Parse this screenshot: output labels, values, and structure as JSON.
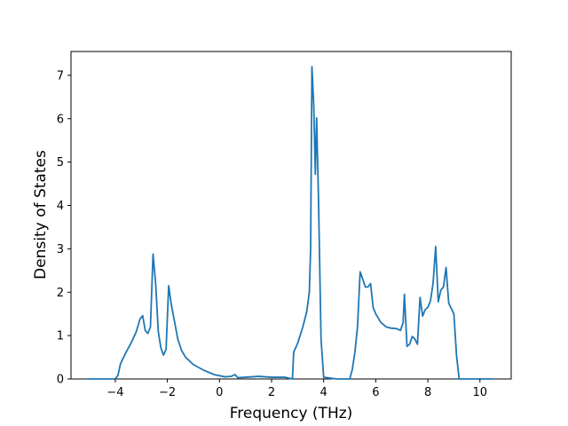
{
  "chart_data": {
    "type": "line",
    "title": "",
    "xlabel": "Frequency (THz)",
    "ylabel": "Density of States",
    "xlim": [
      -5.7,
      11.2
    ],
    "ylim": [
      0,
      7.55
    ],
    "xticks": [
      -4,
      -2,
      0,
      2,
      4,
      6,
      8,
      10
    ],
    "xtick_labels": [
      "−4",
      "−2",
      "0",
      "2",
      "4",
      "6",
      "8",
      "10"
    ],
    "yticks": [
      0,
      1,
      2,
      3,
      4,
      5,
      6,
      7
    ],
    "ytick_labels": [
      "0",
      "1",
      "2",
      "3",
      "4",
      "5",
      "6",
      "7"
    ],
    "grid": false,
    "legend": "none",
    "series": [
      {
        "color": "#1f77b4",
        "x": [
          -5.1,
          -4.5,
          -4.0,
          -3.9,
          -3.8,
          -3.6,
          -3.4,
          -3.2,
          -3.05,
          -2.95,
          -2.85,
          -2.75,
          -2.65,
          -2.55,
          -2.45,
          -2.35,
          -2.25,
          -2.15,
          -2.05,
          -1.95,
          -1.85,
          -1.75,
          -1.6,
          -1.45,
          -1.3,
          -1.0,
          -0.6,
          -0.2,
          0.2,
          0.45,
          0.6,
          0.7,
          1.0,
          1.5,
          2.0,
          2.5,
          2.8,
          2.85,
          3.0,
          3.2,
          3.35,
          3.45,
          3.5,
          3.55,
          3.62,
          3.68,
          3.73,
          3.8,
          3.9,
          4.0,
          4.5,
          5.0,
          5.1,
          5.2,
          5.3,
          5.4,
          5.5,
          5.6,
          5.7,
          5.8,
          5.9,
          6.0,
          6.2,
          6.4,
          6.6,
          6.8,
          6.95,
          7.05,
          7.1,
          7.2,
          7.3,
          7.4,
          7.5,
          7.6,
          7.7,
          7.8,
          7.9,
          8.0,
          8.1,
          8.2,
          8.3,
          8.4,
          8.5,
          8.6,
          8.7,
          8.8,
          9.0,
          9.1,
          9.2,
          9.3,
          10.5
        ],
        "y": [
          0,
          0,
          0,
          0.08,
          0.35,
          0.6,
          0.82,
          1.08,
          1.38,
          1.46,
          1.12,
          1.05,
          1.2,
          2.88,
          2.2,
          1.1,
          0.72,
          0.55,
          0.68,
          2.15,
          1.72,
          1.4,
          0.92,
          0.65,
          0.5,
          0.33,
          0.2,
          0.1,
          0.05,
          0.06,
          0.1,
          0.03,
          0.04,
          0.06,
          0.04,
          0.04,
          0.0,
          0.62,
          0.82,
          1.2,
          1.55,
          2.0,
          3.0,
          7.2,
          6.3,
          4.72,
          6.02,
          4.2,
          0.92,
          0.04,
          0.0,
          0.0,
          0.22,
          0.62,
          1.2,
          2.47,
          2.3,
          2.12,
          2.12,
          2.2,
          1.65,
          1.5,
          1.3,
          1.2,
          1.17,
          1.16,
          1.12,
          1.3,
          1.95,
          0.75,
          0.8,
          0.98,
          0.92,
          0.8,
          1.88,
          1.45,
          1.6,
          1.65,
          1.8,
          2.2,
          3.05,
          1.78,
          2.05,
          2.12,
          2.57,
          1.75,
          1.5,
          0.55,
          0.0,
          0.0,
          0.0
        ]
      }
    ]
  }
}
